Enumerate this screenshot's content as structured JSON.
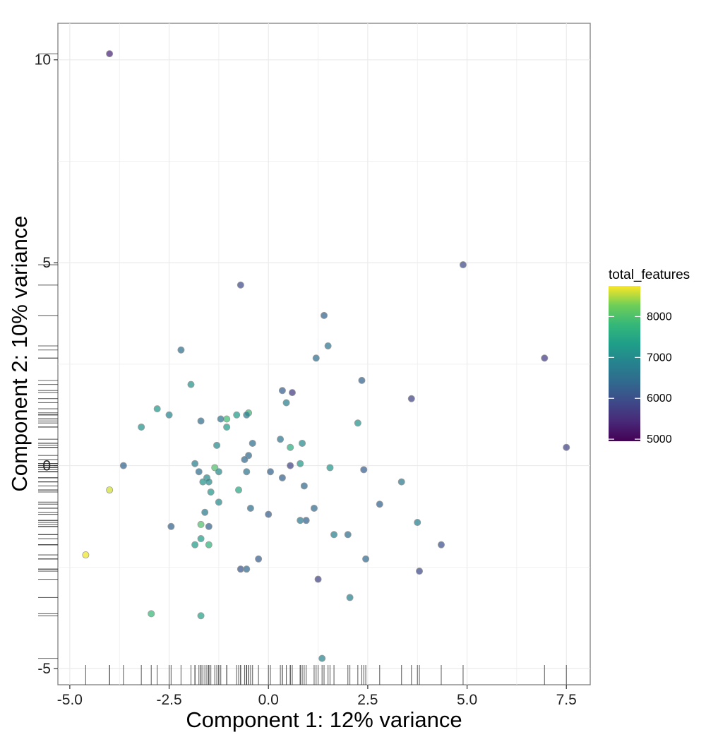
{
  "chart_data": {
    "type": "scatter",
    "xlabel": "Component 1: 12% variance",
    "ylabel": "Component 2: 10% variance",
    "xlim": [
      -5.3,
      8.1
    ],
    "ylim": [
      -5.4,
      10.9
    ],
    "x_ticks": [
      -5.0,
      -2.5,
      0.0,
      2.5,
      5.0,
      7.5
    ],
    "x_tick_labels": [
      "-5.0",
      "-2.5",
      "0.0",
      "2.5",
      "5.0",
      "7.5"
    ],
    "y_ticks": [
      -5,
      0,
      5,
      10
    ],
    "y_tick_labels": [
      "-5",
      "0",
      "5",
      "10"
    ],
    "grid": true,
    "rug": true,
    "color_scale": {
      "title": "total_features",
      "min": 4950,
      "max": 8750,
      "ticks": [
        5000,
        6000,
        7000,
        8000
      ],
      "tick_labels": [
        "5000",
        "6000",
        "7000",
        "8000"
      ],
      "palette": "viridis",
      "placement": "right"
    },
    "points": [
      {
        "x": -4.0,
        "y": 10.15,
        "c": 5400
      },
      {
        "x": 4.9,
        "y": 4.95,
        "c": 5900
      },
      {
        "x": -0.7,
        "y": 4.45,
        "c": 5900
      },
      {
        "x": 1.4,
        "y": 3.7,
        "c": 6300
      },
      {
        "x": 1.5,
        "y": 2.95,
        "c": 6600
      },
      {
        "x": -2.2,
        "y": 2.85,
        "c": 6500
      },
      {
        "x": 6.95,
        "y": 2.65,
        "c": 5700
      },
      {
        "x": 1.2,
        "y": 2.65,
        "c": 6500
      },
      {
        "x": 2.35,
        "y": 2.1,
        "c": 6300
      },
      {
        "x": -1.95,
        "y": 2.0,
        "c": 7100
      },
      {
        "x": 0.35,
        "y": 1.85,
        "c": 6200
      },
      {
        "x": 0.6,
        "y": 1.8,
        "c": 5700
      },
      {
        "x": 3.6,
        "y": 1.65,
        "c": 5800
      },
      {
        "x": 0.45,
        "y": 1.55,
        "c": 6800
      },
      {
        "x": -2.8,
        "y": 1.4,
        "c": 7200
      },
      {
        "x": -0.5,
        "y": 1.3,
        "c": 7800
      },
      {
        "x": -2.5,
        "y": 1.25,
        "c": 6900
      },
      {
        "x": -0.8,
        "y": 1.25,
        "c": 7300
      },
      {
        "x": -0.55,
        "y": 1.25,
        "c": 6700
      },
      {
        "x": -1.05,
        "y": 1.15,
        "c": 7900
      },
      {
        "x": -1.2,
        "y": 1.15,
        "c": 6600
      },
      {
        "x": -1.7,
        "y": 1.1,
        "c": 6500
      },
      {
        "x": 2.25,
        "y": 1.05,
        "c": 7100
      },
      {
        "x": -3.2,
        "y": 0.95,
        "c": 7100
      },
      {
        "x": -1.05,
        "y": 0.95,
        "c": 7300
      },
      {
        "x": 0.3,
        "y": 0.65,
        "c": 6600
      },
      {
        "x": 0.85,
        "y": 0.55,
        "c": 7000
      },
      {
        "x": -0.4,
        "y": 0.55,
        "c": 6500
      },
      {
        "x": -1.3,
        "y": 0.5,
        "c": 7000
      },
      {
        "x": 0.55,
        "y": 0.45,
        "c": 7600
      },
      {
        "x": 7.5,
        "y": 0.45,
        "c": 5800
      },
      {
        "x": -0.5,
        "y": 0.25,
        "c": 6400
      },
      {
        "x": -0.6,
        "y": 0.15,
        "c": 6400
      },
      {
        "x": -3.65,
        "y": 0.0,
        "c": 6300
      },
      {
        "x": -1.85,
        "y": 0.05,
        "c": 6800
      },
      {
        "x": 0.55,
        "y": 0.0,
        "c": 5800
      },
      {
        "x": 0.8,
        "y": 0.05,
        "c": 7200
      },
      {
        "x": -1.35,
        "y": -0.05,
        "c": 8000
      },
      {
        "x": 1.55,
        "y": -0.05,
        "c": 7200
      },
      {
        "x": 2.4,
        "y": -0.1,
        "c": 6200
      },
      {
        "x": 0.05,
        "y": -0.15,
        "c": 6300
      },
      {
        "x": -0.55,
        "y": -0.15,
        "c": 6600
      },
      {
        "x": -1.25,
        "y": -0.15,
        "c": 7000
      },
      {
        "x": -1.75,
        "y": -0.15,
        "c": 6500
      },
      {
        "x": 0.35,
        "y": -0.3,
        "c": 6300
      },
      {
        "x": -1.55,
        "y": -0.3,
        "c": 7000
      },
      {
        "x": -1.65,
        "y": -0.4,
        "c": 7100
      },
      {
        "x": -1.5,
        "y": -0.4,
        "c": 7000
      },
      {
        "x": 3.35,
        "y": -0.4,
        "c": 6700
      },
      {
        "x": -4.0,
        "y": -0.6,
        "c": 8600
      },
      {
        "x": 0.9,
        "y": -0.5,
        "c": 6400
      },
      {
        "x": -0.75,
        "y": -0.6,
        "c": 7500
      },
      {
        "x": -1.45,
        "y": -0.65,
        "c": 7200
      },
      {
        "x": -1.25,
        "y": -0.9,
        "c": 7000
      },
      {
        "x": 2.8,
        "y": -0.95,
        "c": 6300
      },
      {
        "x": 1.15,
        "y": -1.05,
        "c": 6400
      },
      {
        "x": -0.45,
        "y": -1.05,
        "c": 6500
      },
      {
        "x": -1.6,
        "y": -1.15,
        "c": 6700
      },
      {
        "x": 0.0,
        "y": -1.2,
        "c": 6200
      },
      {
        "x": 0.8,
        "y": -1.35,
        "c": 6700
      },
      {
        "x": 0.95,
        "y": -1.35,
        "c": 6300
      },
      {
        "x": 3.75,
        "y": -1.4,
        "c": 6800
      },
      {
        "x": -1.7,
        "y": -1.45,
        "c": 8000
      },
      {
        "x": -1.5,
        "y": -1.5,
        "c": 6300
      },
      {
        "x": -2.45,
        "y": -1.5,
        "c": 6300
      },
      {
        "x": 1.65,
        "y": -1.7,
        "c": 6800
      },
      {
        "x": 2.0,
        "y": -1.7,
        "c": 6500
      },
      {
        "x": -1.7,
        "y": -1.8,
        "c": 7300
      },
      {
        "x": -1.85,
        "y": -1.95,
        "c": 7300
      },
      {
        "x": -1.5,
        "y": -1.95,
        "c": 7700
      },
      {
        "x": 4.35,
        "y": -1.95,
        "c": 6000
      },
      {
        "x": -4.6,
        "y": -2.2,
        "c": 8700
      },
      {
        "x": -0.25,
        "y": -2.3,
        "c": 6200
      },
      {
        "x": 2.45,
        "y": -2.3,
        "c": 6400
      },
      {
        "x": -0.7,
        "y": -2.55,
        "c": 6100
      },
      {
        "x": -0.55,
        "y": -2.55,
        "c": 6400
      },
      {
        "x": 3.8,
        "y": -2.6,
        "c": 5900
      },
      {
        "x": 1.25,
        "y": -2.8,
        "c": 5800
      },
      {
        "x": 2.05,
        "y": -3.25,
        "c": 6800
      },
      {
        "x": -2.95,
        "y": -3.65,
        "c": 7800
      },
      {
        "x": -1.7,
        "y": -3.7,
        "c": 7400
      },
      {
        "x": 1.35,
        "y": -4.75,
        "c": 6900
      }
    ]
  }
}
